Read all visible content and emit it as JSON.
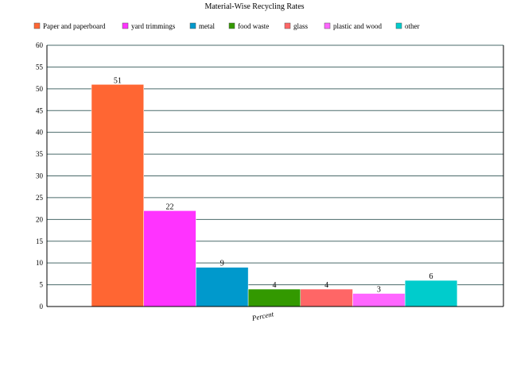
{
  "chart_data": {
    "type": "bar",
    "title": "Material-Wise Recycling Rates",
    "categories": [
      "Percent"
    ],
    "series": [
      {
        "name": "Paper and paperboard",
        "values": [
          51
        ],
        "color": "#ff6633"
      },
      {
        "name": "yard trimmings",
        "values": [
          22
        ],
        "color": "#ff33ff"
      },
      {
        "name": "metal",
        "values": [
          9
        ],
        "color": "#0099cc"
      },
      {
        "name": "food waste",
        "values": [
          4
        ],
        "color": "#339900"
      },
      {
        "name": "glass",
        "values": [
          4
        ],
        "color": "#ff6666"
      },
      {
        "name": "plastic and wood",
        "values": [
          3
        ],
        "color": "#ff66ff"
      },
      {
        "name": "other",
        "values": [
          6
        ],
        "color": "#00cccc"
      }
    ],
    "xlabel": "",
    "ylabel": "",
    "ylim": [
      0,
      60
    ],
    "yticks": [
      0,
      5,
      10,
      15,
      20,
      25,
      30,
      35,
      40,
      45,
      50,
      55,
      60
    ],
    "grid": true,
    "legend_position": "top"
  }
}
